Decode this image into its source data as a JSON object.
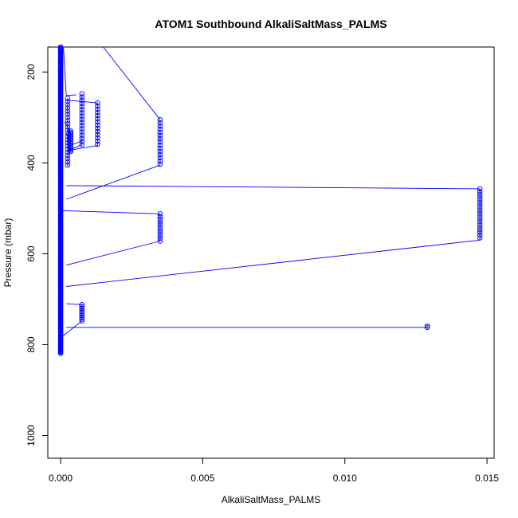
{
  "chart_data": {
    "type": "scatter",
    "title": "ATOM1 Southbound AlkaliSaltMass_PALMS",
    "xlabel": "AlkaliSaltMass_PALMS",
    "ylabel": "Pressure (mbar)",
    "xlim": [
      -0.00045,
      0.01525
    ],
    "ylim": [
      1050,
      145
    ],
    "y_reversed": true,
    "grid": false,
    "legend": "none",
    "marker": "open-circle",
    "xticks": [
      0.0,
      0.005,
      0.01,
      0.015
    ],
    "xtick_labels": [
      "0.000",
      "0.005",
      "0.010",
      "0.015"
    ],
    "yticks": [
      200,
      400,
      600,
      800,
      1000
    ],
    "ytick_labels": [
      "200",
      "400",
      "600",
      "800",
      "1000"
    ],
    "series": [
      {
        "color": "#0000ff",
        "columns": [
          {
            "x": 0.0,
            "y_from": 145,
            "y_to": 820,
            "step": 2
          },
          {
            "x": 0.00025,
            "y_from": 258,
            "y_to": 408,
            "step": 7
          },
          {
            "x": 0.00035,
            "y_from": 330,
            "y_to": 375,
            "step": 3
          },
          {
            "x": 0.00075,
            "y_from": 248,
            "y_to": 362,
            "step": 7
          },
          {
            "x": 0.00075,
            "y_from": 712,
            "y_to": 748,
            "step": 4
          },
          {
            "x": 0.0013,
            "y_from": 268,
            "y_to": 362,
            "step": 7
          },
          {
            "x": 0.0035,
            "y_from": 305,
            "y_to": 405,
            "step": 7
          },
          {
            "x": 0.0035,
            "y_from": 512,
            "y_to": 572,
            "step": 6
          },
          {
            "x": 0.0129,
            "y_from": 759,
            "y_to": 762,
            "step": 3
          },
          {
            "x": 0.01475,
            "y_from": 457,
            "y_to": 570,
            "step": 6
          }
        ],
        "segments": [
          [
            [
              0.0015,
              145
            ],
            [
              0.0035,
              305
            ]
          ],
          [
            [
              0.0001,
              145
            ],
            [
              0.0002,
              252
            ],
            [
              0.00055,
              250
            ]
          ],
          [
            [
              0.0002,
              262
            ],
            [
              0.0013,
              268
            ]
          ],
          [
            [
              0.00015,
              310
            ],
            [
              0.00035,
              333
            ]
          ],
          [
            [
              0.0002,
              335
            ],
            [
              0.0003,
              355
            ]
          ],
          [
            [
              0.0003,
              372
            ],
            [
              0.0013,
              362
            ]
          ],
          [
            [
              0.0002,
              345
            ],
            [
              0.0004,
              360
            ],
            [
              0.00075,
              352
            ]
          ],
          [
            [
              0.0003,
              372
            ],
            [
              0.00075,
              360
            ]
          ],
          [
            [
              0.0002,
              480
            ],
            [
              0.0035,
              405
            ]
          ],
          [
            [
              0.0002,
              450
            ],
            [
              0.01475,
              457
            ]
          ],
          [
            [
              0.0,
              505
            ],
            [
              0.0035,
              512
            ]
          ],
          [
            [
              0.0002,
              625
            ],
            [
              0.0035,
              572
            ]
          ],
          [
            [
              0.0002,
              672
            ],
            [
              0.01475,
              570
            ]
          ],
          [
            [
              0.0002,
              710
            ],
            [
              0.00075,
              712
            ]
          ],
          [
            [
              0.0002,
              762
            ],
            [
              0.0129,
              762
            ]
          ],
          [
            [
              0.0,
              785
            ],
            [
              0.00075,
              748
            ]
          ]
        ]
      }
    ]
  }
}
